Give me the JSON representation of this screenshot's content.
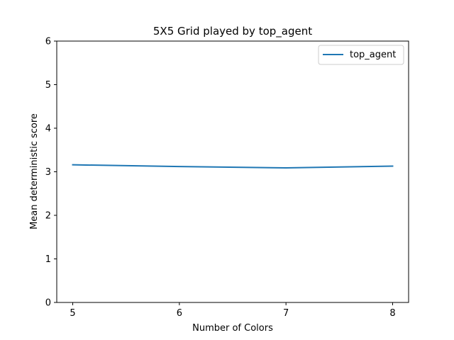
{
  "chart_data": {
    "type": "line",
    "title": "5X5 Grid played by top_agent",
    "xlabel": "Number of Colors",
    "ylabel": "Mean deterministic score",
    "x": [
      5,
      6,
      7,
      8
    ],
    "xticks": [
      "5",
      "6",
      "7",
      "8"
    ],
    "xlim": [
      4.85,
      8.15
    ],
    "ylim": [
      0,
      6
    ],
    "yticks": [
      "0",
      "1",
      "2",
      "3",
      "4",
      "5",
      "6"
    ],
    "grid": false,
    "legend_position": "upper-right",
    "series": [
      {
        "name": "top_agent",
        "color": "#1f77b4",
        "values": [
          3.16,
          3.12,
          3.09,
          3.13
        ]
      }
    ]
  }
}
